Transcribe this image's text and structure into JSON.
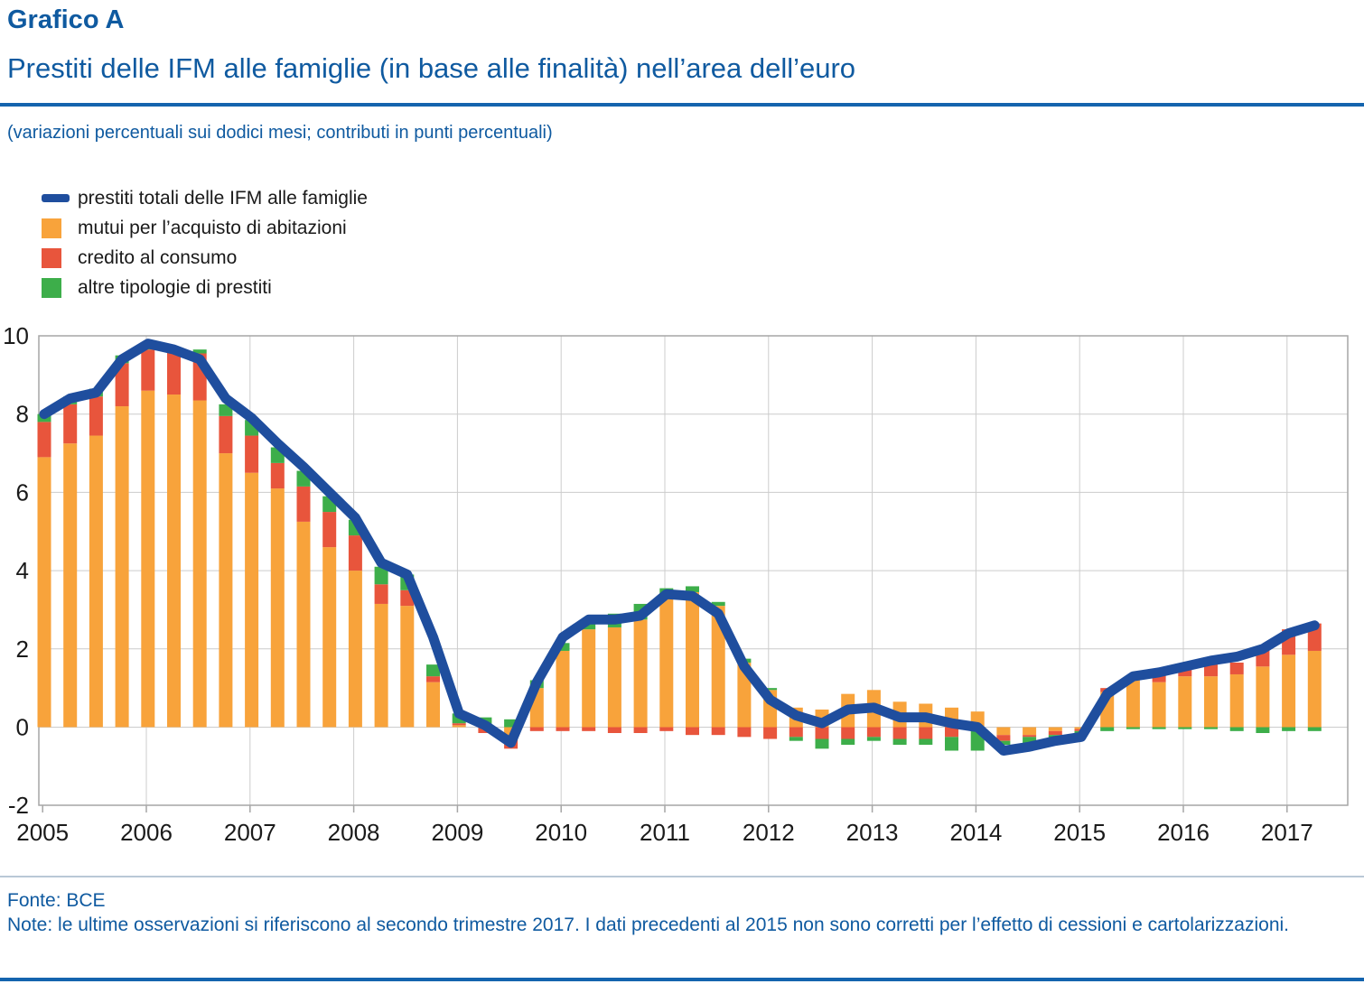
{
  "header": {
    "kicker": "Grafico A",
    "title": "Prestiti delle IFM alle famiglie (in base alle finalità) nell’area dell’euro",
    "subtitle": "(variazioni percentuali sui dodici mesi; contributi in punti percentuali)"
  },
  "colors": {
    "accent_blue": "#0f5aa0",
    "rule_blue": "#1464ae",
    "line_total": "#1f4e9e",
    "bar_housing": "#f8a33b",
    "bar_consumer": "#e8553c",
    "bar_other": "#3dae4a",
    "grid": "#cccccc",
    "plot_border": "#a6a6a6",
    "axis_text": "#1a1a1a"
  },
  "legend": [
    {
      "label": "prestiti totali delle IFM alle famiglie",
      "marker": "line",
      "color": "#1f4e9e"
    },
    {
      "label": "mutui per l’acquisto di abitazioni",
      "marker": "square",
      "color": "#f8a33b"
    },
    {
      "label": "credito al consumo",
      "marker": "square",
      "color": "#e8553c"
    },
    {
      "label": "altre tipologie di prestiti",
      "marker": "square",
      "color": "#3dae4a"
    }
  ],
  "chart_data": {
    "type": "bar",
    "subtype": "stacked-bars-with-line",
    "x": [
      "2005Q1",
      "2005Q2",
      "2005Q3",
      "2005Q4",
      "2006Q1",
      "2006Q2",
      "2006Q3",
      "2006Q4",
      "2007Q1",
      "2007Q2",
      "2007Q3",
      "2007Q4",
      "2008Q1",
      "2008Q2",
      "2008Q3",
      "2008Q4",
      "2009Q1",
      "2009Q2",
      "2009Q3",
      "2009Q4",
      "2010Q1",
      "2010Q2",
      "2010Q3",
      "2010Q4",
      "2011Q1",
      "2011Q2",
      "2011Q3",
      "2011Q4",
      "2012Q1",
      "2012Q2",
      "2012Q3",
      "2012Q4",
      "2013Q1",
      "2013Q2",
      "2013Q3",
      "2013Q4",
      "2014Q1",
      "2014Q2",
      "2014Q3",
      "2014Q4",
      "2015Q1",
      "2015Q2",
      "2015Q3",
      "2015Q4",
      "2016Q1",
      "2016Q2",
      "2016Q3",
      "2016Q4",
      "2017Q1",
      "2017Q2"
    ],
    "series": [
      {
        "name": "prestiti totali delle IFM alle famiglie",
        "type": "line",
        "color": "#1f4e9e",
        "values": [
          8.0,
          8.4,
          8.55,
          9.4,
          9.8,
          9.65,
          9.4,
          8.4,
          7.9,
          7.25,
          6.65,
          6.0,
          5.35,
          4.2,
          3.9,
          2.3,
          0.35,
          0.05,
          -0.4,
          1.15,
          2.3,
          2.75,
          2.75,
          2.85,
          3.4,
          3.35,
          2.9,
          1.55,
          0.7,
          0.3,
          0.1,
          0.45,
          0.5,
          0.25,
          0.25,
          0.1,
          0.0,
          -0.6,
          -0.5,
          -0.35,
          -0.25,
          0.85,
          1.3,
          1.4,
          1.55,
          1.7,
          1.8,
          2.0,
          2.4,
          2.6
        ]
      },
      {
        "name": "mutui per l’acquisto di abitazioni",
        "type": "bar",
        "color": "#f8a33b",
        "values": [
          6.9,
          7.25,
          7.45,
          8.2,
          8.6,
          8.5,
          8.35,
          7.0,
          6.5,
          6.1,
          5.25,
          4.6,
          4.0,
          3.15,
          3.1,
          1.15,
          0.05,
          0.0,
          -0.3,
          1.0,
          1.95,
          2.5,
          2.55,
          2.75,
          3.3,
          3.45,
          3.1,
          1.65,
          0.95,
          0.5,
          0.45,
          0.85,
          0.95,
          0.65,
          0.6,
          0.5,
          0.4,
          -0.2,
          -0.2,
          -0.1,
          -0.05,
          0.9,
          1.2,
          1.15,
          1.3,
          1.3,
          1.35,
          1.55,
          1.85,
          1.95
        ]
      },
      {
        "name": "credito al consumo",
        "type": "bar",
        "color": "#e8553c",
        "values": [
          0.9,
          1.0,
          1.0,
          1.1,
          1.05,
          1.1,
          1.2,
          0.95,
          0.95,
          0.65,
          0.9,
          0.9,
          0.9,
          0.5,
          0.4,
          0.15,
          0.05,
          -0.15,
          -0.25,
          -0.1,
          -0.1,
          -0.1,
          -0.15,
          -0.15,
          -0.1,
          -0.2,
          -0.2,
          -0.25,
          -0.3,
          -0.25,
          -0.3,
          -0.3,
          -0.25,
          -0.3,
          -0.3,
          -0.25,
          -0.1,
          -0.15,
          -0.05,
          -0.1,
          -0.05,
          0.1,
          0.1,
          0.3,
          0.25,
          0.35,
          0.3,
          0.5,
          0.65,
          0.7
        ]
      },
      {
        "name": "altre tipologie di prestiti",
        "type": "bar",
        "color": "#3dae4a",
        "values": [
          0.2,
          0.2,
          0.2,
          0.2,
          0.1,
          0.1,
          0.1,
          0.3,
          0.4,
          0.4,
          0.4,
          0.4,
          0.4,
          0.45,
          0.4,
          0.3,
          0.25,
          0.25,
          0.2,
          0.2,
          0.2,
          0.2,
          0.35,
          0.4,
          0.25,
          0.15,
          0.1,
          0.1,
          0.05,
          -0.1,
          -0.25,
          -0.15,
          -0.1,
          -0.15,
          -0.15,
          -0.35,
          -0.5,
          -0.1,
          -0.2,
          -0.1,
          -0.05,
          -0.1,
          -0.05,
          -0.05,
          -0.05,
          -0.05,
          -0.1,
          -0.15,
          -0.1,
          -0.1
        ]
      }
    ],
    "title": "Prestiti delle IFM alle famiglie (in base alle finalità) nell’area dell’euro",
    "xlabel": "",
    "ylabel": "",
    "ylim": [
      -2,
      10
    ],
    "yticks": [
      10,
      8,
      6,
      4,
      2,
      0,
      -2
    ],
    "xticks": [
      "2005",
      "2006",
      "2007",
      "2008",
      "2009",
      "2010",
      "2011",
      "2012",
      "2013",
      "2014",
      "2015",
      "2016",
      "2017"
    ],
    "grid": true,
    "legend_position": "top-left"
  },
  "footer": {
    "source": "Fonte: BCE",
    "note": "Note: le ultime osservazioni si riferiscono al secondo trimestre 2017. I dati precedenti al 2015 non sono corretti per l’effetto di cessioni e cartolarizzazioni."
  }
}
